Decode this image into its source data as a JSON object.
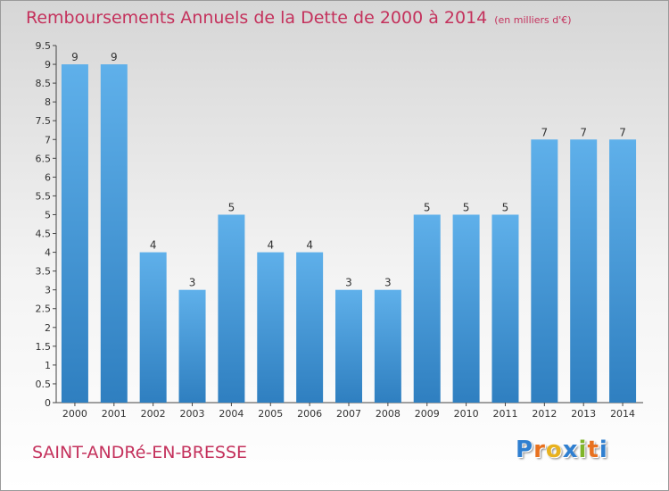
{
  "header": {
    "title": "Remboursements Annuels de la Dette de 2000 à 2014",
    "unit": "(en milliers d'€)"
  },
  "footer": {
    "place": "SAINT-ANDRé-EN-BRESSE",
    "logo": [
      "P",
      "r",
      "o",
      "x",
      "i",
      "t",
      "i"
    ],
    "logo_colors": [
      "#2f7fd0",
      "#e8711f",
      "#e8b21f",
      "#2f7fd0",
      "#7fb52a",
      "#e8711f",
      "#2f7fd0"
    ]
  },
  "colors": {
    "bar_light": "#5fb0ea",
    "bar_dark": "#2f7fc0",
    "text": "#333333",
    "title": "#c4315c"
  },
  "chart_data": {
    "type": "bar",
    "title": "Remboursements Annuels de la Dette de 2000 à 2014",
    "xlabel": "",
    "ylabel": "",
    "categories": [
      "2000",
      "2001",
      "2002",
      "2003",
      "2004",
      "2005",
      "2006",
      "2007",
      "2008",
      "2009",
      "2010",
      "2011",
      "2012",
      "2013",
      "2014"
    ],
    "values": [
      9,
      9,
      4,
      3,
      5,
      4,
      4,
      3,
      3,
      5,
      5,
      5,
      7,
      7,
      7
    ],
    "data_labels": [
      "9",
      "9",
      "4",
      "3",
      "5",
      "4",
      "4",
      "3",
      "3",
      "5",
      "5",
      "5",
      "7",
      "7",
      "7"
    ],
    "ylim": [
      0,
      9.5
    ],
    "yticks": [
      "0",
      "0.5",
      "1",
      "1.5",
      "2",
      "2.5",
      "3",
      "3.5",
      "4",
      "4.5",
      "5",
      "5.5",
      "6",
      "6.5",
      "7",
      "7.5",
      "8",
      "8.5",
      "9",
      "9.5"
    ],
    "grid": false
  }
}
